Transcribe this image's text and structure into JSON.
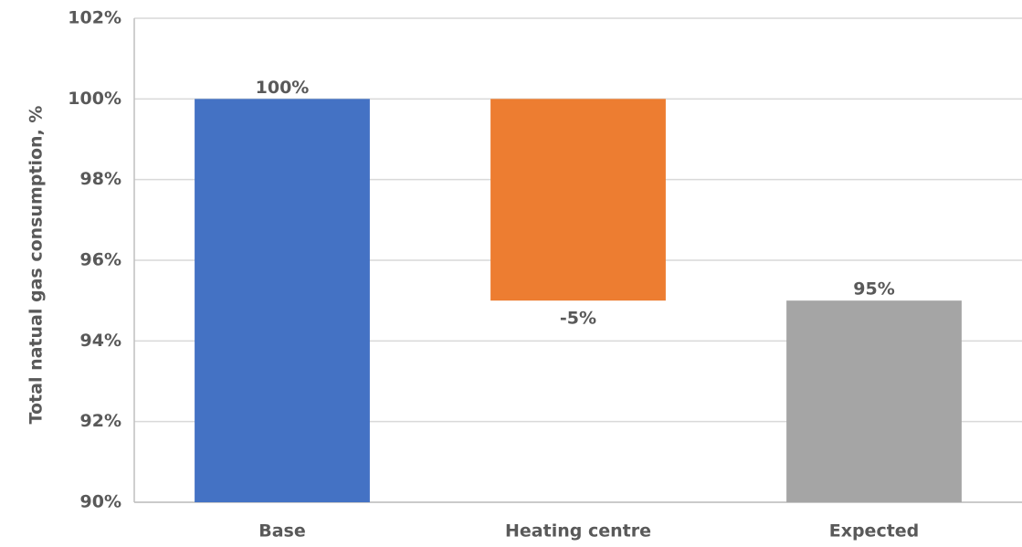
{
  "chart_data": {
    "type": "waterfall",
    "y_label": "Total natual gas consumption, %",
    "categories": [
      "Base",
      "Heating centre",
      "Expected"
    ],
    "values": [
      100,
      -5,
      95
    ],
    "value_labels": [
      "100%",
      "-5%",
      "95%"
    ],
    "colors": [
      "#4472c4",
      "#ed7d31",
      "#a5a5a5"
    ],
    "ylim": [
      90,
      102
    ],
    "yticks": [
      {
        "value": 90,
        "label": "90%"
      },
      {
        "value": 92,
        "label": "92%"
      },
      {
        "value": 94,
        "label": "94%"
      },
      {
        "value": 96,
        "label": "96%"
      },
      {
        "value": 98,
        "label": "98%"
      },
      {
        "value": 100,
        "label": "100%"
      },
      {
        "value": 102,
        "label": "102%"
      }
    ],
    "grid": true
  }
}
